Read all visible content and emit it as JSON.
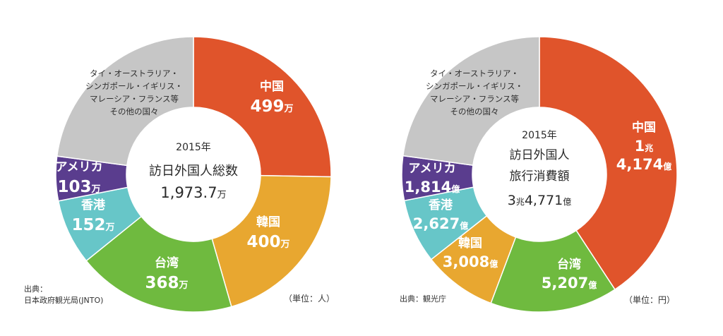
{
  "chart_data": [
    {
      "type": "pie",
      "center": {
        "year": "2015年",
        "title_lines": [
          "訪日外国人総数"
        ],
        "total": "1,973.7",
        "total_unit": "万"
      },
      "slices": [
        {
          "label": "中国",
          "value": 499,
          "display": "499",
          "unit": "万",
          "color": "#e0542b"
        },
        {
          "label": "韓国",
          "value": 400,
          "display": "400",
          "unit": "万",
          "color": "#e8a730"
        },
        {
          "label": "台湾",
          "value": 368,
          "display": "368",
          "unit": "万",
          "color": "#6fba3f"
        },
        {
          "label": "香港",
          "value": 152,
          "display": "152",
          "unit": "万",
          "color": "#67c6c8"
        },
        {
          "label": "アメリカ",
          "value": 103,
          "display": "103",
          "unit": "万",
          "color": "#5a3d8e"
        },
        {
          "label_lines": [
            "タイ・オーストラリア・",
            "シンガポール・イギリス・",
            "マレーシア・フランス等",
            "その他の国々"
          ],
          "value": 451.7,
          "color": "#c6c6c6"
        }
      ],
      "source_lines": [
        "出典：",
        "日本政府観光局(JNTO)"
      ],
      "unit_label": "（単位：人）"
    },
    {
      "type": "pie",
      "center": {
        "year": "2015年",
        "title_lines": [
          "訪日外国人",
          "旅行消費額"
        ],
        "total_parts": [
          [
            "3",
            "兆"
          ],
          [
            "4,771",
            "億"
          ]
        ]
      },
      "slices": [
        {
          "label": "中国",
          "value": 14174,
          "display_parts": [
            [
              "1",
              "兆"
            ],
            [
              "4,174",
              "億"
            ]
          ],
          "color": "#e0542b"
        },
        {
          "label": "台湾",
          "value": 5207,
          "display_parts": [
            [
              "5,207",
              "億"
            ]
          ],
          "color": "#6fba3f"
        },
        {
          "label": "韓国",
          "value": 3008,
          "display_parts": [
            [
              "3,008",
              "億"
            ]
          ],
          "color": "#e8a730"
        },
        {
          "label": "香港",
          "value": 2627,
          "display_parts": [
            [
              "2,627",
              "億"
            ]
          ],
          "color": "#67c6c8"
        },
        {
          "label": "アメリカ",
          "value": 1814,
          "display_parts": [
            [
              "1,814",
              "億"
            ]
          ],
          "color": "#5a3d8e"
        },
        {
          "label_lines": [
            "タイ・オーストラリア・",
            "シンガポール・イギリス・",
            "マレーシア・フランス等",
            "その他の国々"
          ],
          "value": 7941,
          "color": "#c6c6c6"
        }
      ],
      "source_lines": [
        "出典：観光庁"
      ],
      "unit_label": "（単位：円）"
    }
  ]
}
